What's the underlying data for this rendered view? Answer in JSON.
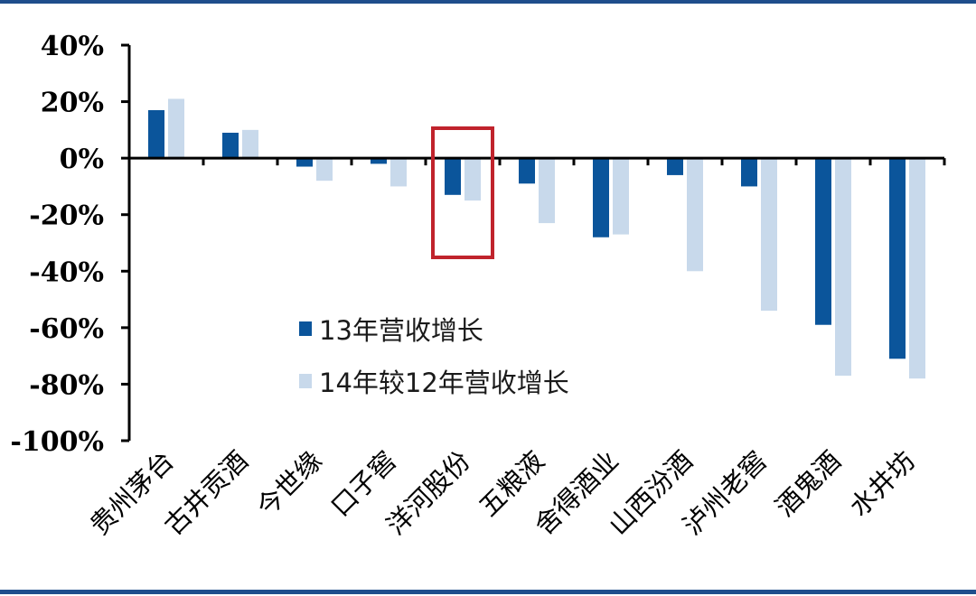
{
  "chart_data": {
    "type": "bar",
    "title": "",
    "xlabel": "",
    "ylabel": "",
    "categories": [
      "贵州茅台",
      "古井贡酒",
      "今世缘",
      "口子窖",
      "洋河股份",
      "五粮液",
      "舍得酒业",
      "山西汾酒",
      "泸州老窖",
      "酒鬼酒",
      "水井坊"
    ],
    "series": [
      {
        "name": "13年营收增长",
        "color": "#0b559b",
        "values": [
          17,
          9,
          -3,
          -2,
          -13,
          -9,
          -28,
          -6,
          -10,
          -59,
          -71
        ]
      },
      {
        "name": "14年较12年营收增长",
        "color": "#c8d9eb",
        "values": [
          21,
          10,
          -8,
          -10,
          -15,
          -23,
          -27,
          -40,
          -54,
          -77,
          -78
        ]
      }
    ],
    "ylim": [
      -100,
      40
    ],
    "yticks": [
      40,
      20,
      0,
      -20,
      -40,
      -60,
      -80,
      -100
    ],
    "ytick_labels": [
      "40%",
      "20%",
      "0%",
      "-20%",
      "-40%",
      "-60%",
      "-80%",
      "-100%"
    ],
    "grid": false,
    "legend_position": "center",
    "highlight": {
      "category": "洋河股份",
      "color": "#c0232c"
    }
  },
  "frame": {
    "border_color": "#1f4e8c"
  }
}
